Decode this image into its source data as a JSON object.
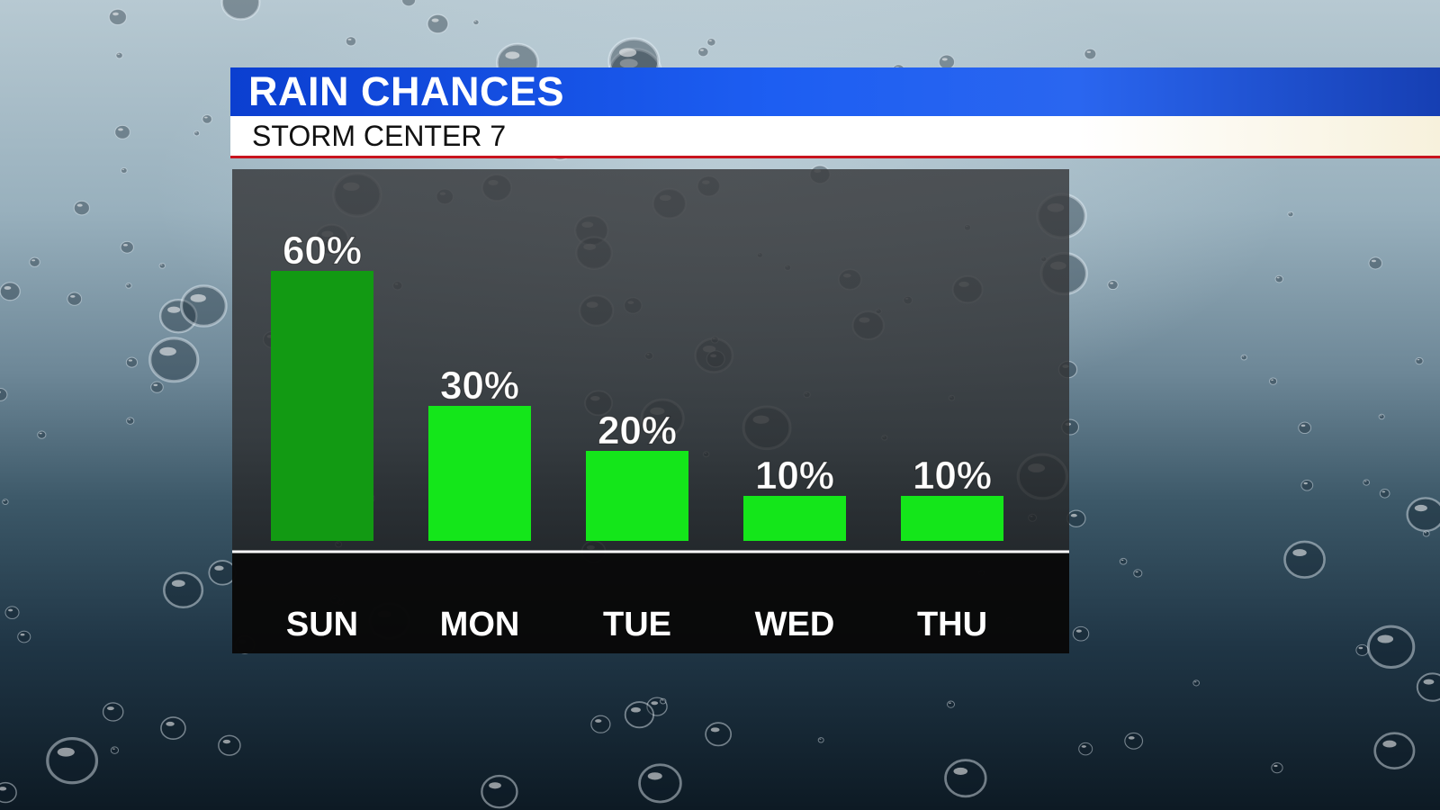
{
  "header": {
    "title": "RAIN CHANCES",
    "subtitle": "STORM CENTER 7"
  },
  "colors": {
    "title_band": "#1d5ef2",
    "subtitle_band": "#ffffff",
    "accent_line": "#c8141e",
    "highest_bar": "#129a13",
    "bar": "#14e61a"
  },
  "chart_data": {
    "type": "bar",
    "categories": [
      "SUN",
      "MON",
      "TUE",
      "WED",
      "THU"
    ],
    "values": [
      60,
      30,
      20,
      10,
      10
    ],
    "value_labels": [
      "60%",
      "30%",
      "20%",
      "10%",
      "10%"
    ],
    "title": "RAIN CHANCES",
    "xlabel": "",
    "ylabel": "",
    "ylim": [
      0,
      100
    ],
    "grid": false,
    "legend": "none"
  }
}
